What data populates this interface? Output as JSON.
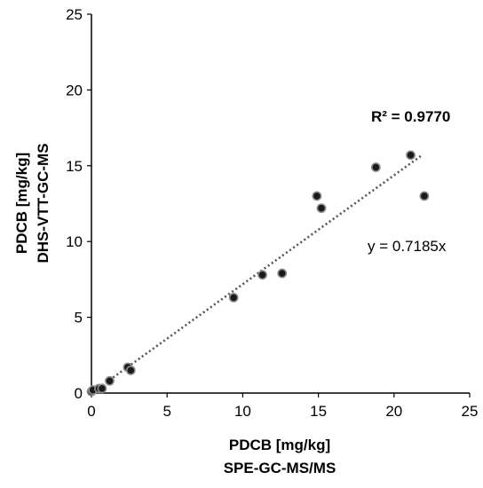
{
  "chart_data": {
    "type": "scatter",
    "x_label_line1": "PDCB [mg/kg]",
    "x_label_line2": "SPE-GC-MS/MS",
    "y_label_line1": "PDCB [mg/kg]",
    "y_label_line2": "DHS-VTT-GC-MS",
    "xlim": [
      0,
      25
    ],
    "ylim": [
      0,
      25
    ],
    "x_ticks": [
      "0",
      "5",
      "10",
      "15",
      "20",
      "25"
    ],
    "y_ticks": [
      "0",
      "5",
      "10",
      "15",
      "20",
      "25"
    ],
    "grid": false,
    "points": [
      {
        "x": 0.0,
        "y": 0.1
      },
      {
        "x": 0.1,
        "y": 0.2
      },
      {
        "x": 0.5,
        "y": 0.3
      },
      {
        "x": 0.7,
        "y": 0.3
      },
      {
        "x": 1.2,
        "y": 0.8
      },
      {
        "x": 2.4,
        "y": 1.7
      },
      {
        "x": 2.6,
        "y": 1.5
      },
      {
        "x": 9.4,
        "y": 6.3
      },
      {
        "x": 11.3,
        "y": 7.8
      },
      {
        "x": 12.6,
        "y": 7.9
      },
      {
        "x": 14.9,
        "y": 13.0
      },
      {
        "x": 15.2,
        "y": 12.2
      },
      {
        "x": 18.8,
        "y": 14.9
      },
      {
        "x": 21.1,
        "y": 15.7
      },
      {
        "x": 22.0,
        "y": 13.0
      }
    ],
    "trendline": {
      "type": "linear",
      "slope": 0.7185,
      "x_range": [
        0,
        21.8
      ],
      "style": "dotted",
      "equation_label": "y = 0.7185x",
      "r2_label": "R² = 0.9770"
    },
    "colors": {
      "point_fill": "#1a1a1a",
      "point_stroke": "#8c8c8c",
      "trendline": "#555555",
      "axis": "#000000"
    }
  }
}
